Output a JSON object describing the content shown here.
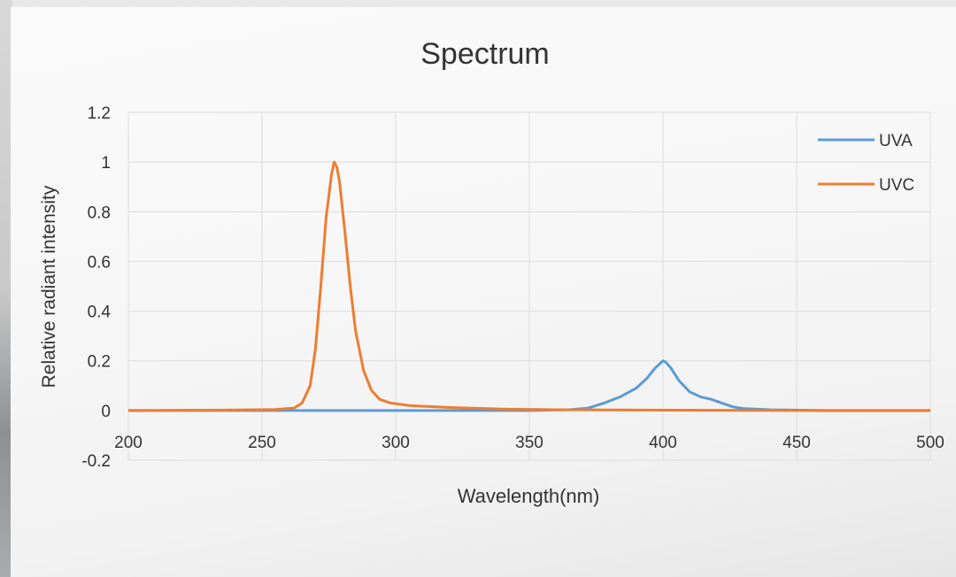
{
  "chart_data": {
    "type": "line",
    "title": "Spectrum",
    "xlabel": "Wavelength(nm)",
    "ylabel": "Relative radiant intensity",
    "xlim": [
      200,
      500
    ],
    "ylim": [
      -0.2,
      1.2
    ],
    "x_ticks": [
      "200",
      "250",
      "300",
      "350",
      "400",
      "450",
      "500"
    ],
    "y_ticks": [
      "1.2",
      "1",
      "0.8",
      "0.6",
      "0.4",
      "0.2",
      "0",
      "-0.2"
    ],
    "grid": true,
    "legend_position": "top-right",
    "series": [
      {
        "name": "UVA",
        "color": "#5b9bd5",
        "x": [
          200,
          250,
          300,
          350,
          365,
          372,
          378,
          384,
          390,
          394,
          397,
          399,
          400,
          401,
          403,
          406,
          410,
          414,
          418,
          422,
          426,
          430,
          440,
          460,
          500
        ],
        "y": [
          0,
          0,
          0,
          0,
          0.003,
          0.01,
          0.03,
          0.055,
          0.09,
          0.13,
          0.17,
          0.19,
          0.2,
          0.195,
          0.17,
          0.12,
          0.075,
          0.055,
          0.045,
          0.03,
          0.015,
          0.008,
          0.003,
          0,
          0
        ]
      },
      {
        "name": "UVC",
        "color": "#ed7d31",
        "x": [
          200,
          240,
          255,
          262,
          265,
          268,
          270,
          272,
          274,
          276,
          277,
          278,
          279,
          281,
          283,
          285,
          288,
          291,
          294,
          298,
          305,
          320,
          340,
          360,
          380,
          420,
          460,
          500
        ],
        "y": [
          0,
          0.002,
          0.004,
          0.01,
          0.03,
          0.1,
          0.25,
          0.5,
          0.78,
          0.95,
          1.0,
          0.98,
          0.92,
          0.72,
          0.5,
          0.32,
          0.16,
          0.08,
          0.045,
          0.03,
          0.02,
          0.012,
          0.006,
          0.003,
          0.002,
          0.001,
          0,
          0
        ]
      }
    ]
  }
}
